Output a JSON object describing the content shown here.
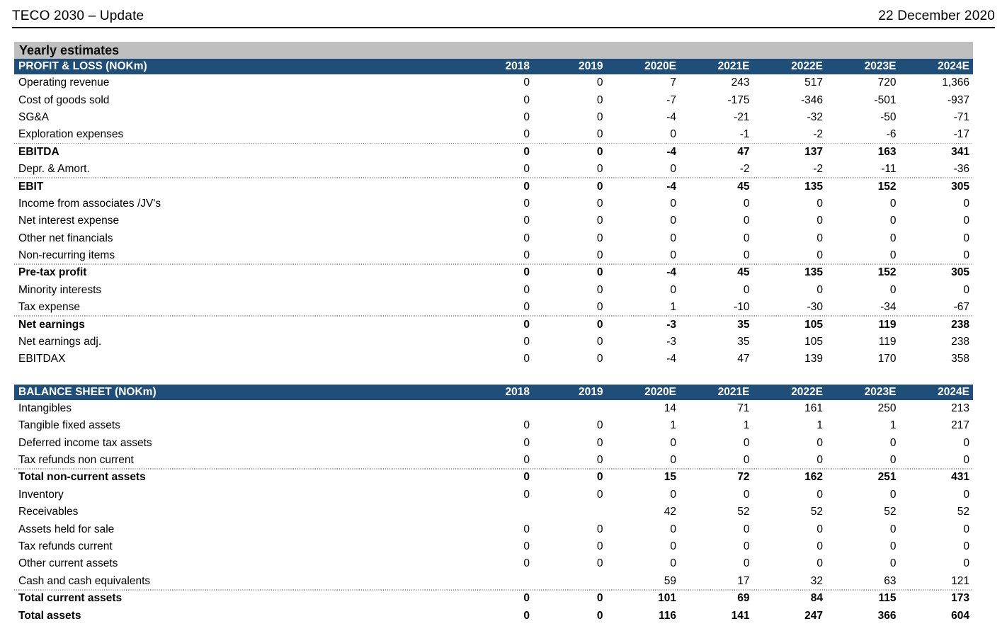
{
  "header": {
    "title": "TECO 2030 – Update",
    "date": "22 December 2020"
  },
  "section": {
    "title": "Yearly estimates"
  },
  "colors": {
    "table_header_blue": "#1F4E79",
    "section_bar_gray": "#BFBFBF",
    "separator_dotted_gray": "#9A9A9A",
    "rule_black": "#0A0A0A"
  },
  "columns": [
    "2018",
    "2019",
    "2020E",
    "2021E",
    "2022E",
    "2023E",
    "2024E"
  ],
  "tables": [
    {
      "id": "profit-loss",
      "header": "PROFIT & LOSS (NOKm)",
      "rows": [
        {
          "label": "Operating revenue",
          "values": [
            "0",
            "0",
            "7",
            "243",
            "517",
            "720",
            "1,366"
          ],
          "bold": false,
          "sep": false
        },
        {
          "label": "Cost of goods sold",
          "values": [
            "0",
            "0",
            "-7",
            "-175",
            "-346",
            "-501",
            "-937"
          ],
          "bold": false,
          "sep": false
        },
        {
          "label": "SG&A",
          "values": [
            "0",
            "0",
            "-4",
            "-21",
            "-32",
            "-50",
            "-71"
          ],
          "bold": false,
          "sep": false
        },
        {
          "label": "Exploration expenses",
          "values": [
            "0",
            "0",
            "0",
            "-1",
            "-2",
            "-6",
            "-17"
          ],
          "bold": false,
          "sep": false
        },
        {
          "label": "EBITDA",
          "values": [
            "0",
            "0",
            "-4",
            "47",
            "137",
            "163",
            "341"
          ],
          "bold": true,
          "sep": true
        },
        {
          "label": "Depr. & Amort.",
          "values": [
            "0",
            "0",
            "0",
            "-2",
            "-2",
            "-11",
            "-36"
          ],
          "bold": false,
          "sep": false
        },
        {
          "label": "EBIT",
          "values": [
            "0",
            "0",
            "-4",
            "45",
            "135",
            "152",
            "305"
          ],
          "bold": true,
          "sep": true
        },
        {
          "label": "Income from associates /JV's",
          "values": [
            "0",
            "0",
            "0",
            "0",
            "0",
            "0",
            "0"
          ],
          "bold": false,
          "sep": false
        },
        {
          "label": "Net interest expense",
          "values": [
            "0",
            "0",
            "0",
            "0",
            "0",
            "0",
            "0"
          ],
          "bold": false,
          "sep": false
        },
        {
          "label": "Other net financials",
          "values": [
            "0",
            "0",
            "0",
            "0",
            "0",
            "0",
            "0"
          ],
          "bold": false,
          "sep": false
        },
        {
          "label": "Non-recurring items",
          "values": [
            "0",
            "0",
            "0",
            "0",
            "0",
            "0",
            "0"
          ],
          "bold": false,
          "sep": false
        },
        {
          "label": "Pre-tax profit",
          "values": [
            "0",
            "0",
            "-4",
            "45",
            "135",
            "152",
            "305"
          ],
          "bold": true,
          "sep": true
        },
        {
          "label": "Minority interests",
          "values": [
            "0",
            "0",
            "0",
            "0",
            "0",
            "0",
            "0"
          ],
          "bold": false,
          "sep": false
        },
        {
          "label": "Tax expense",
          "values": [
            "0",
            "0",
            "1",
            "-10",
            "-30",
            "-34",
            "-67"
          ],
          "bold": false,
          "sep": false
        },
        {
          "label": "Net earnings",
          "values": [
            "0",
            "0",
            "-3",
            "35",
            "105",
            "119",
            "238"
          ],
          "bold": true,
          "sep": true
        },
        {
          "label": "Net earnings adj.",
          "values": [
            "0",
            "0",
            "-3",
            "35",
            "105",
            "119",
            "238"
          ],
          "bold": false,
          "sep": false
        },
        {
          "label": "EBITDAX",
          "values": [
            "0",
            "0",
            "-4",
            "47",
            "139",
            "170",
            "358"
          ],
          "bold": false,
          "sep": false
        }
      ]
    },
    {
      "id": "balance-sheet",
      "header": "BALANCE SHEET (NOKm)",
      "rows": [
        {
          "label": "Intangibles",
          "values": [
            "",
            "",
            "14",
            "71",
            "161",
            "250",
            "213"
          ],
          "bold": false,
          "sep": false
        },
        {
          "label": "Tangible fixed assets",
          "values": [
            "0",
            "0",
            "1",
            "1",
            "1",
            "1",
            "217"
          ],
          "bold": false,
          "sep": false
        },
        {
          "label": "Deferred income tax assets",
          "values": [
            "0",
            "0",
            "0",
            "0",
            "0",
            "0",
            "0"
          ],
          "bold": false,
          "sep": false
        },
        {
          "label": "Tax refunds non current",
          "values": [
            "0",
            "0",
            "0",
            "0",
            "0",
            "0",
            "0"
          ],
          "bold": false,
          "sep": false
        },
        {
          "label": "Total non-current assets",
          "values": [
            "0",
            "0",
            "15",
            "72",
            "162",
            "251",
            "431"
          ],
          "bold": true,
          "sep": true
        },
        {
          "label": "Inventory",
          "values": [
            "0",
            "0",
            "0",
            "0",
            "0",
            "0",
            "0"
          ],
          "bold": false,
          "sep": false
        },
        {
          "label": "Receivables",
          "values": [
            "",
            "",
            "42",
            "52",
            "52",
            "52",
            "52"
          ],
          "bold": false,
          "sep": false
        },
        {
          "label": "Assets held for sale",
          "values": [
            "0",
            "0",
            "0",
            "0",
            "0",
            "0",
            "0"
          ],
          "bold": false,
          "sep": false
        },
        {
          "label": "Tax refunds current",
          "values": [
            "0",
            "0",
            "0",
            "0",
            "0",
            "0",
            "0"
          ],
          "bold": false,
          "sep": false
        },
        {
          "label": "Other current assets",
          "values": [
            "0",
            "0",
            "0",
            "0",
            "0",
            "0",
            "0"
          ],
          "bold": false,
          "sep": false
        },
        {
          "label": "Cash and cash equivalents",
          "values": [
            "",
            "",
            "59",
            "17",
            "32",
            "63",
            "121"
          ],
          "bold": false,
          "sep": false
        },
        {
          "label": "Total current assets",
          "values": [
            "0",
            "0",
            "101",
            "69",
            "84",
            "115",
            "173"
          ],
          "bold": true,
          "sep": true
        },
        {
          "label": "Total assets",
          "values": [
            "0",
            "0",
            "116",
            "141",
            "247",
            "366",
            "604"
          ],
          "bold": true,
          "sep": false
        }
      ]
    }
  ]
}
